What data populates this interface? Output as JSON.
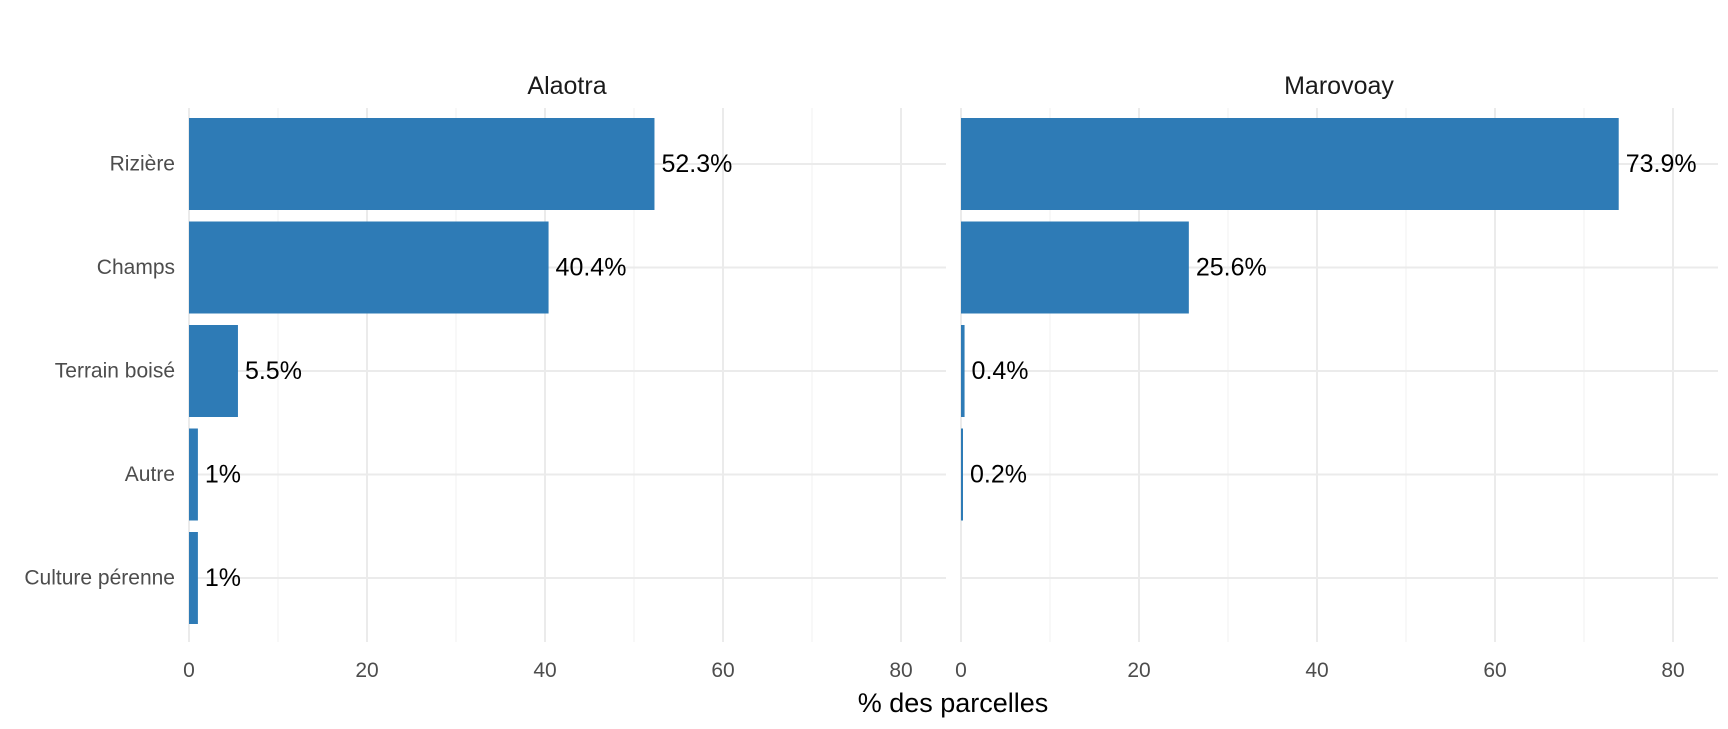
{
  "chart_data": {
    "type": "bar",
    "orientation": "horizontal",
    "categories": [
      "Rizière",
      "Champs",
      "Terrain boisé",
      "Autre",
      "Culture pérenne"
    ],
    "panels": [
      {
        "title": "Alaotra",
        "values": [
          52.3,
          40.4,
          5.5,
          1,
          1
        ],
        "labels": [
          "52.3%",
          "40.4%",
          "5.5%",
          "1%",
          "1%"
        ]
      },
      {
        "title": "Marovoay",
        "values": [
          73.9,
          25.6,
          0.4,
          0.2,
          0
        ],
        "labels": [
          "73.9%",
          "25.6%",
          "0.4%",
          "0.2%",
          ""
        ]
      }
    ],
    "xlabel": "% des parcelles",
    "ylabel": "",
    "xlim": [
      0,
      85
    ],
    "xticks": [
      0,
      20,
      40,
      60,
      80
    ],
    "bar_color": "#2e7bb6",
    "grid": true
  }
}
